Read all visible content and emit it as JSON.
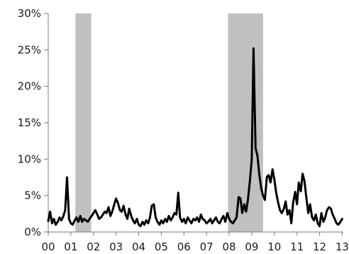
{
  "chart_data": {
    "type": "line",
    "title": "",
    "xlabel": "",
    "ylabel": "",
    "grid": false,
    "legend": "none",
    "ylim": [
      0,
      30
    ],
    "xlim": [
      2000,
      2013.05
    ],
    "y_ticks": [
      0,
      5,
      10,
      15,
      20,
      25,
      30
    ],
    "y_tick_labels": [
      "0%",
      "5%",
      "10%",
      "15%",
      "20%",
      "25%",
      "30%"
    ],
    "x_ticks": [
      2000,
      2001,
      2002,
      2003,
      2004,
      2005,
      2006,
      2007,
      2008,
      2009,
      2010,
      2011,
      2012,
      2013
    ],
    "x_tick_labels": [
      "00",
      "01",
      "02",
      "03",
      "04",
      "05",
      "06",
      "07",
      "08",
      "09",
      "10",
      "11",
      "12",
      "13"
    ],
    "shaded_periods": [
      {
        "start": 2001.2,
        "end": 2001.9
      },
      {
        "start": 2007.95,
        "end": 2009.5
      }
    ],
    "colors": {
      "line": "#000000",
      "shading": "#c0c0c0",
      "axis": "#7a7a7a"
    },
    "series": [
      {
        "x": [
          2000.0,
          2000.08,
          2000.17,
          2000.25,
          2000.33,
          2000.42,
          2000.5,
          2000.58,
          2000.67,
          2000.75,
          2000.83,
          2000.92,
          2001.0,
          2001.08,
          2001.17,
          2001.25,
          2001.33,
          2001.42,
          2001.5,
          2001.58,
          2001.67,
          2001.75,
          2001.83,
          2001.92,
          2002.0,
          2002.08,
          2002.17,
          2002.25,
          2002.33,
          2002.42,
          2002.5,
          2002.58,
          2002.67,
          2002.75,
          2002.83,
          2002.92,
          2003.0,
          2003.08,
          2003.17,
          2003.25,
          2003.33,
          2003.42,
          2003.5,
          2003.58,
          2003.67,
          2003.75,
          2003.83,
          2003.92,
          2004.0,
          2004.08,
          2004.17,
          2004.25,
          2004.33,
          2004.42,
          2004.5,
          2004.58,
          2004.67,
          2004.75,
          2004.83,
          2004.92,
          2005.0,
          2005.08,
          2005.17,
          2005.25,
          2005.33,
          2005.42,
          2005.5,
          2005.58,
          2005.67,
          2005.75,
          2005.83,
          2005.92,
          2006.0,
          2006.08,
          2006.17,
          2006.25,
          2006.33,
          2006.42,
          2006.5,
          2006.58,
          2006.67,
          2006.75,
          2006.83,
          2006.92,
          2007.0,
          2007.08,
          2007.17,
          2007.25,
          2007.33,
          2007.42,
          2007.5,
          2007.58,
          2007.67,
          2007.75,
          2007.83,
          2007.92,
          2008.0,
          2008.08,
          2008.17,
          2008.25,
          2008.33,
          2008.42,
          2008.5,
          2008.58,
          2008.67,
          2008.75,
          2008.83,
          2008.92,
          2009.0,
          2009.08,
          2009.17,
          2009.25,
          2009.33,
          2009.42,
          2009.5,
          2009.58,
          2009.67,
          2009.75,
          2009.83,
          2009.92,
          2010.0,
          2010.08,
          2010.17,
          2010.25,
          2010.33,
          2010.42,
          2010.5,
          2010.58,
          2010.67,
          2010.75,
          2010.83,
          2010.92,
          2011.0,
          2011.08,
          2011.17,
          2011.25,
          2011.33,
          2011.42,
          2011.5,
          2011.58,
          2011.67,
          2011.75,
          2011.83,
          2011.92,
          2012.0,
          2012.08,
          2012.17,
          2012.25,
          2012.33,
          2012.42,
          2012.5,
          2012.58,
          2012.67,
          2012.75,
          2012.83,
          2012.92,
          2013.0
        ],
        "values": [
          1.5,
          2.8,
          1.2,
          1.8,
          1.0,
          1.4,
          2.0,
          1.6,
          2.2,
          3.0,
          7.5,
          1.8,
          1.2,
          1.0,
          1.6,
          2.0,
          1.4,
          2.2,
          1.4,
          1.8,
          1.6,
          1.4,
          1.8,
          2.2,
          2.6,
          3.0,
          2.4,
          1.8,
          2.0,
          2.4,
          2.8,
          2.6,
          3.4,
          2.2,
          2.8,
          3.8,
          4.6,
          4.0,
          3.0,
          2.8,
          3.6,
          2.4,
          1.8,
          3.2,
          2.2,
          1.6,
          1.2,
          1.8,
          1.0,
          0.8,
          1.4,
          1.0,
          1.6,
          1.2,
          2.0,
          3.6,
          3.8,
          2.0,
          1.4,
          1.0,
          1.6,
          1.2,
          1.8,
          1.4,
          2.2,
          1.6,
          2.0,
          2.6,
          2.4,
          5.4,
          2.0,
          1.4,
          1.8,
          1.2,
          2.0,
          1.6,
          1.2,
          1.8,
          1.6,
          2.0,
          1.4,
          2.4,
          1.8,
          1.6,
          1.2,
          1.4,
          1.8,
          1.2,
          1.6,
          2.0,
          1.4,
          1.2,
          1.8,
          2.2,
          1.4,
          2.6,
          1.8,
          1.4,
          1.2,
          1.6,
          2.0,
          4.8,
          4.6,
          2.6,
          3.8,
          2.8,
          4.4,
          7.0,
          10.0,
          25.2,
          11.5,
          10.5,
          8.0,
          6.0,
          5.0,
          4.4,
          7.6,
          7.8,
          6.8,
          8.6,
          7.2,
          5.4,
          4.0,
          3.0,
          2.6,
          3.2,
          4.2,
          2.4,
          3.0,
          1.2,
          4.0,
          5.5,
          3.8,
          6.8,
          5.6,
          8.0,
          7.0,
          4.6,
          2.6,
          3.8,
          2.0,
          1.6,
          2.4,
          1.2,
          0.8,
          2.6,
          1.4,
          2.0,
          3.0,
          3.4,
          3.2,
          2.4,
          1.8,
          1.2,
          1.0,
          1.4,
          1.8
        ]
      }
    ]
  }
}
